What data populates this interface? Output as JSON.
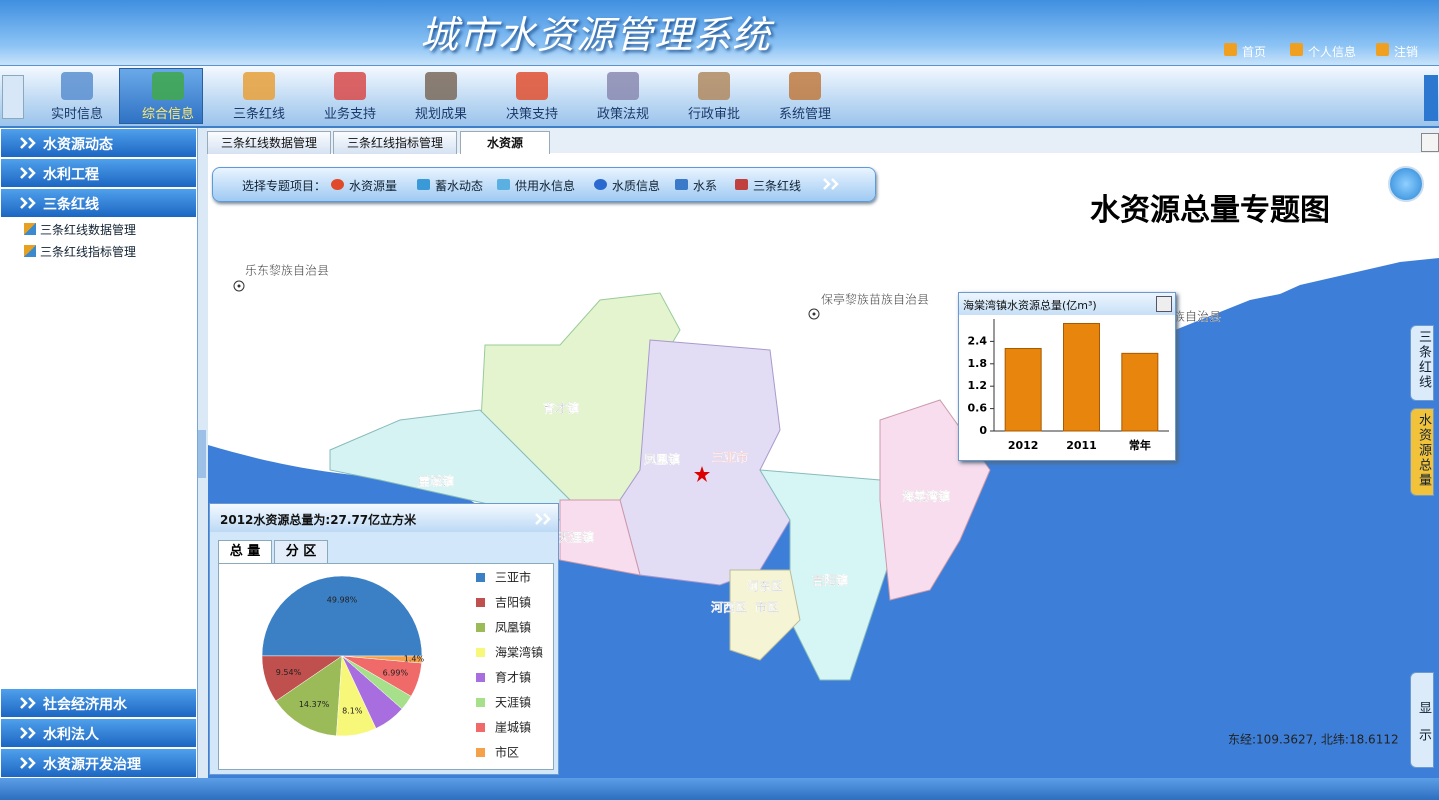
{
  "header": {
    "title": "城市水资源管理系统",
    "links": [
      "首页",
      "个人信息",
      "注销"
    ]
  },
  "nav": [
    "实时信息",
    "综合信息",
    "三条红线",
    "业务支持",
    "规划成果",
    "决策支持",
    "政策法规",
    "行政审批",
    "系统管理"
  ],
  "sidebar": {
    "top": [
      "水资源动态",
      "水利工程",
      "三条红线"
    ],
    "sub": [
      "三条红线数据管理",
      "三条红线指标管理"
    ],
    "bottom": [
      "社会经济用水",
      "水利法人",
      "水资源开发治理"
    ]
  },
  "tabs": [
    "三条红线数据管理",
    "三条红线指标管理",
    "水资源"
  ],
  "toolbar": {
    "label": "选择专题项目：",
    "items": [
      "水资源量",
      "蓄水动态",
      "供用水信息",
      "水质信息",
      "水系",
      "三条红线"
    ]
  },
  "map": {
    "title": "水资源总量专题图",
    "places": [
      "乐东黎族自治县",
      "保亭黎族苗族自治县",
      "族自治县",
      "育才镇",
      "凤凰镇",
      "三亚市",
      "崖城镇",
      "天涯镇",
      "海棠湾镇",
      "河东区",
      "吉阳镇",
      "河西区",
      "市区"
    ],
    "coordinates": "东经:109.3627, 北纬:18.6112",
    "side_tabs": [
      "三条红线",
      "水资源总量",
      "显示"
    ]
  },
  "chart_data": [
    {
      "type": "bar",
      "title": "海棠湾镇水资源总量(亿m³)",
      "categories": [
        "2012",
        "2011",
        "常年"
      ],
      "values": [
        2.21,
        2.88,
        2.08
      ],
      "color": "#e8850c",
      "ylim": [
        0,
        3
      ],
      "yticks": [
        0,
        0.6,
        1.2,
        1.8,
        2.4
      ]
    },
    {
      "type": "pie",
      "title": "2012水资源总量为:27.77亿立方米",
      "categories": [
        "三亚市",
        "吉阳镇",
        "凤凰镇",
        "海棠湾镇",
        "育才镇",
        "天涯镇",
        "崖城镇",
        "市区"
      ],
      "values": [
        49.98,
        9.54,
        14.37,
        8.1,
        6.5,
        3.12,
        6.99,
        1.4
      ],
      "value_labels": [
        "49.98%",
        "9.54%",
        "14.37%",
        "8.1%",
        null,
        null,
        "6.99%",
        "1.4%"
      ],
      "colors": [
        "#3b7fc4",
        "#c0504d",
        "#9bbb59",
        "#f7f77a",
        "#a86ee0",
        "#a6e08a",
        "#f06a6a",
        "#f5a14a"
      ]
    }
  ],
  "pie_panel": {
    "tabs": [
      "总 量",
      "分 区"
    ]
  }
}
